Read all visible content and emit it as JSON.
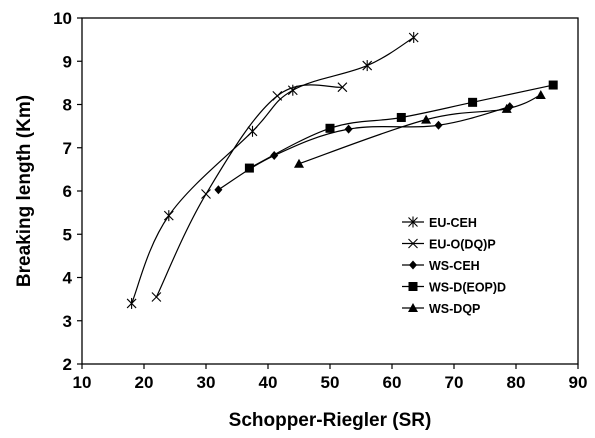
{
  "chart_data": {
    "type": "line",
    "title": "",
    "xlabel": "Schopper-Riegler (SR)",
    "ylabel": "Breaking length (Km)",
    "xlim": [
      10,
      90
    ],
    "ylim": [
      2,
      10
    ],
    "x_ticks": [
      10,
      20,
      30,
      40,
      50,
      60,
      70,
      80,
      90
    ],
    "y_ticks": [
      2,
      3,
      4,
      5,
      6,
      7,
      8,
      9,
      10
    ],
    "grid": false,
    "legend_position": "lower-right",
    "series": [
      {
        "name": "EU-CEH",
        "marker": "asterisk",
        "color": "#000000",
        "points": [
          [
            18.0,
            3.4
          ],
          [
            24.0,
            5.43
          ],
          [
            37.5,
            7.38
          ],
          [
            44.0,
            8.33
          ],
          [
            56.0,
            8.9
          ],
          [
            63.5,
            9.55
          ]
        ]
      },
      {
        "name": "EU-O(DQ)P",
        "marker": "x",
        "color": "#000000",
        "points": [
          [
            22.0,
            3.55
          ],
          [
            30.0,
            5.93
          ],
          [
            41.5,
            8.2
          ],
          [
            52.0,
            8.4
          ]
        ]
      },
      {
        "name": "WS-CEH",
        "marker": "diamond",
        "color": "#000000",
        "points": [
          [
            32.0,
            6.03
          ],
          [
            41.0,
            6.82
          ],
          [
            53.0,
            7.43
          ],
          [
            67.5,
            7.52
          ],
          [
            79.0,
            7.95
          ]
        ]
      },
      {
        "name": "WS-D(EOP)D",
        "marker": "square",
        "color": "#000000",
        "points": [
          [
            37.0,
            6.53
          ],
          [
            50.0,
            7.45
          ],
          [
            61.5,
            7.7
          ],
          [
            73.0,
            8.05
          ],
          [
            86.0,
            8.45
          ]
        ]
      },
      {
        "name": "WS-DQP",
        "marker": "triangle",
        "color": "#000000",
        "points": [
          [
            45.0,
            6.63
          ],
          [
            65.5,
            7.65
          ],
          [
            78.5,
            7.9
          ],
          [
            84.0,
            8.22
          ]
        ]
      }
    ]
  }
}
